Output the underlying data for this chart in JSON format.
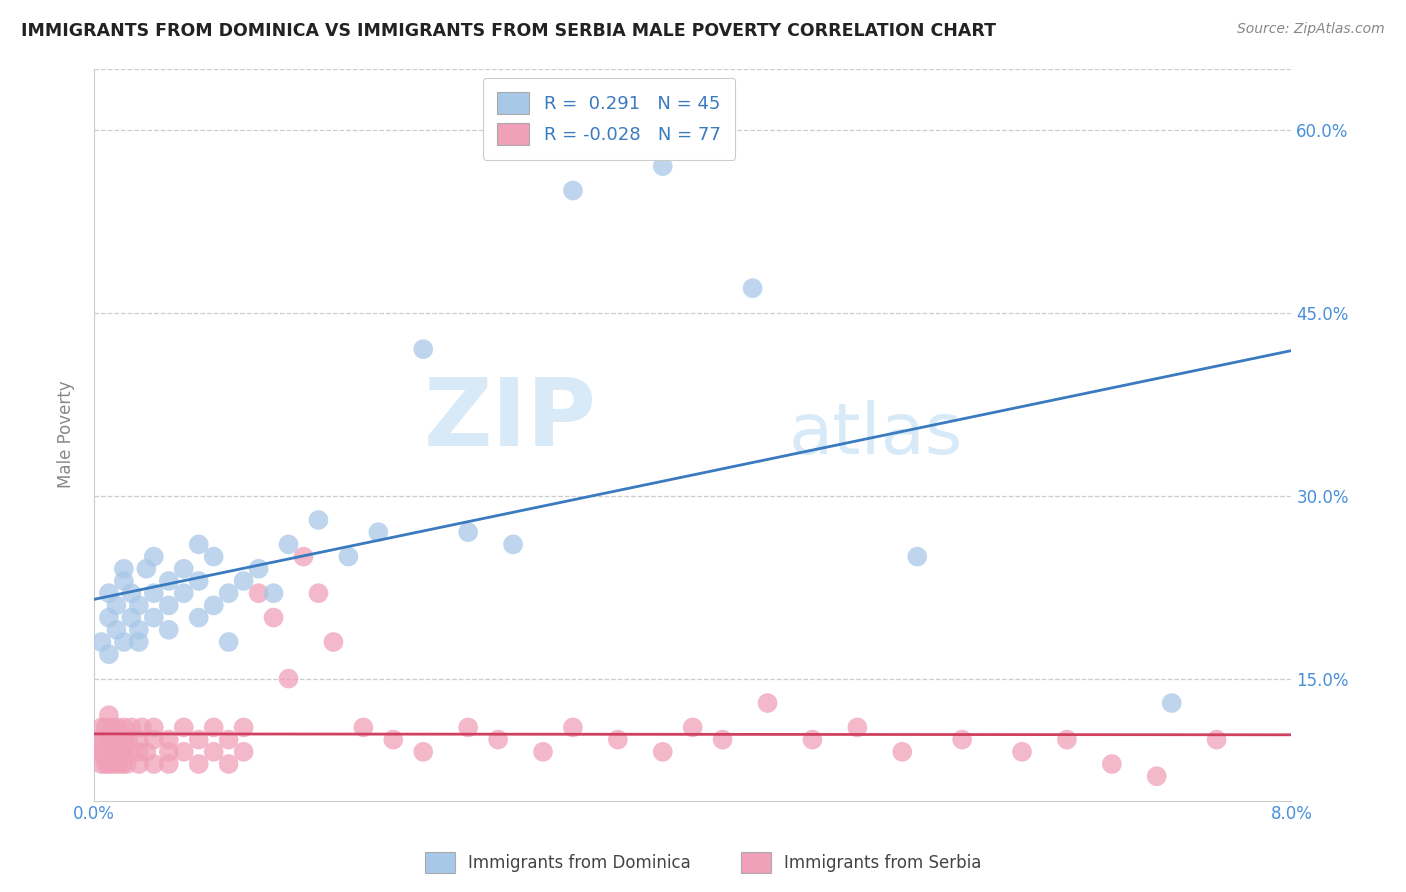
{
  "title": "IMMIGRANTS FROM DOMINICA VS IMMIGRANTS FROM SERBIA MALE POVERTY CORRELATION CHART",
  "source": "Source: ZipAtlas.com",
  "ylabel": "Male Poverty",
  "xlim": [
    0.0,
    0.08
  ],
  "ylim": [
    0.05,
    0.65
  ],
  "dominica_color": "#a8c8e8",
  "serbia_color": "#f0a0b8",
  "dominica_line_color": "#3a7abf",
  "serbia_line_color": "#d04060",
  "dominica_R": 0.291,
  "dominica_N": 45,
  "serbia_R": -0.028,
  "serbia_N": 77,
  "watermark_color": "#d8eaf8",
  "legend_label1": "Immigrants from Dominica",
  "legend_label2": "Immigrants from Serbia",
  "grid_color": "#cccccc",
  "title_color": "#222222",
  "source_color": "#888888",
  "ylabel_color": "#888888",
  "tick_color": "#4a90d9",
  "ytick_positions": [
    0.15,
    0.3,
    0.45,
    0.6
  ],
  "ytick_labels": [
    "15.0%",
    "30.0%",
    "45.0%",
    "60.0%"
  ],
  "dom_x": [
    0.0005,
    0.001,
    0.001,
    0.001,
    0.0015,
    0.0015,
    0.002,
    0.002,
    0.002,
    0.0025,
    0.0025,
    0.003,
    0.003,
    0.003,
    0.0035,
    0.004,
    0.004,
    0.004,
    0.005,
    0.005,
    0.005,
    0.006,
    0.006,
    0.007,
    0.007,
    0.007,
    0.008,
    0.008,
    0.009,
    0.009,
    0.01,
    0.011,
    0.012,
    0.013,
    0.015,
    0.017,
    0.019,
    0.022,
    0.025,
    0.028,
    0.032,
    0.038,
    0.044,
    0.055,
    0.072
  ],
  "dom_y": [
    0.18,
    0.2,
    0.22,
    0.17,
    0.21,
    0.19,
    0.23,
    0.18,
    0.24,
    0.2,
    0.22,
    0.19,
    0.21,
    0.18,
    0.24,
    0.2,
    0.22,
    0.25,
    0.21,
    0.23,
    0.19,
    0.22,
    0.24,
    0.2,
    0.23,
    0.26,
    0.21,
    0.25,
    0.22,
    0.18,
    0.23,
    0.24,
    0.22,
    0.26,
    0.28,
    0.25,
    0.27,
    0.42,
    0.27,
    0.26,
    0.55,
    0.57,
    0.47,
    0.25,
    0.13
  ],
  "serb_x": [
    0.0002,
    0.0004,
    0.0005,
    0.0005,
    0.0006,
    0.0007,
    0.0008,
    0.0008,
    0.0009,
    0.001,
    0.001,
    0.001,
    0.0012,
    0.0012,
    0.0013,
    0.0014,
    0.0015,
    0.0015,
    0.0016,
    0.0017,
    0.0018,
    0.0019,
    0.002,
    0.002,
    0.002,
    0.0022,
    0.0023,
    0.0024,
    0.0025,
    0.003,
    0.003,
    0.003,
    0.0032,
    0.0035,
    0.004,
    0.004,
    0.004,
    0.005,
    0.005,
    0.005,
    0.006,
    0.006,
    0.007,
    0.007,
    0.008,
    0.008,
    0.009,
    0.009,
    0.01,
    0.01,
    0.011,
    0.012,
    0.013,
    0.014,
    0.015,
    0.016,
    0.018,
    0.02,
    0.022,
    0.025,
    0.027,
    0.03,
    0.032,
    0.035,
    0.038,
    0.04,
    0.042,
    0.045,
    0.048,
    0.051,
    0.054,
    0.058,
    0.062,
    0.065,
    0.068,
    0.071,
    0.075
  ],
  "serb_y": [
    0.09,
    0.1,
    0.08,
    0.11,
    0.09,
    0.1,
    0.08,
    0.11,
    0.09,
    0.1,
    0.08,
    0.12,
    0.09,
    0.11,
    0.08,
    0.1,
    0.09,
    0.11,
    0.08,
    0.1,
    0.09,
    0.08,
    0.1,
    0.11,
    0.09,
    0.08,
    0.1,
    0.09,
    0.11,
    0.09,
    0.1,
    0.08,
    0.11,
    0.09,
    0.1,
    0.08,
    0.11,
    0.09,
    0.1,
    0.08,
    0.11,
    0.09,
    0.1,
    0.08,
    0.11,
    0.09,
    0.1,
    0.08,
    0.11,
    0.09,
    0.22,
    0.2,
    0.15,
    0.25,
    0.22,
    0.18,
    0.11,
    0.1,
    0.09,
    0.11,
    0.1,
    0.09,
    0.11,
    0.1,
    0.09,
    0.11,
    0.1,
    0.13,
    0.1,
    0.11,
    0.09,
    0.1,
    0.09,
    0.1,
    0.08,
    0.07,
    0.1
  ]
}
